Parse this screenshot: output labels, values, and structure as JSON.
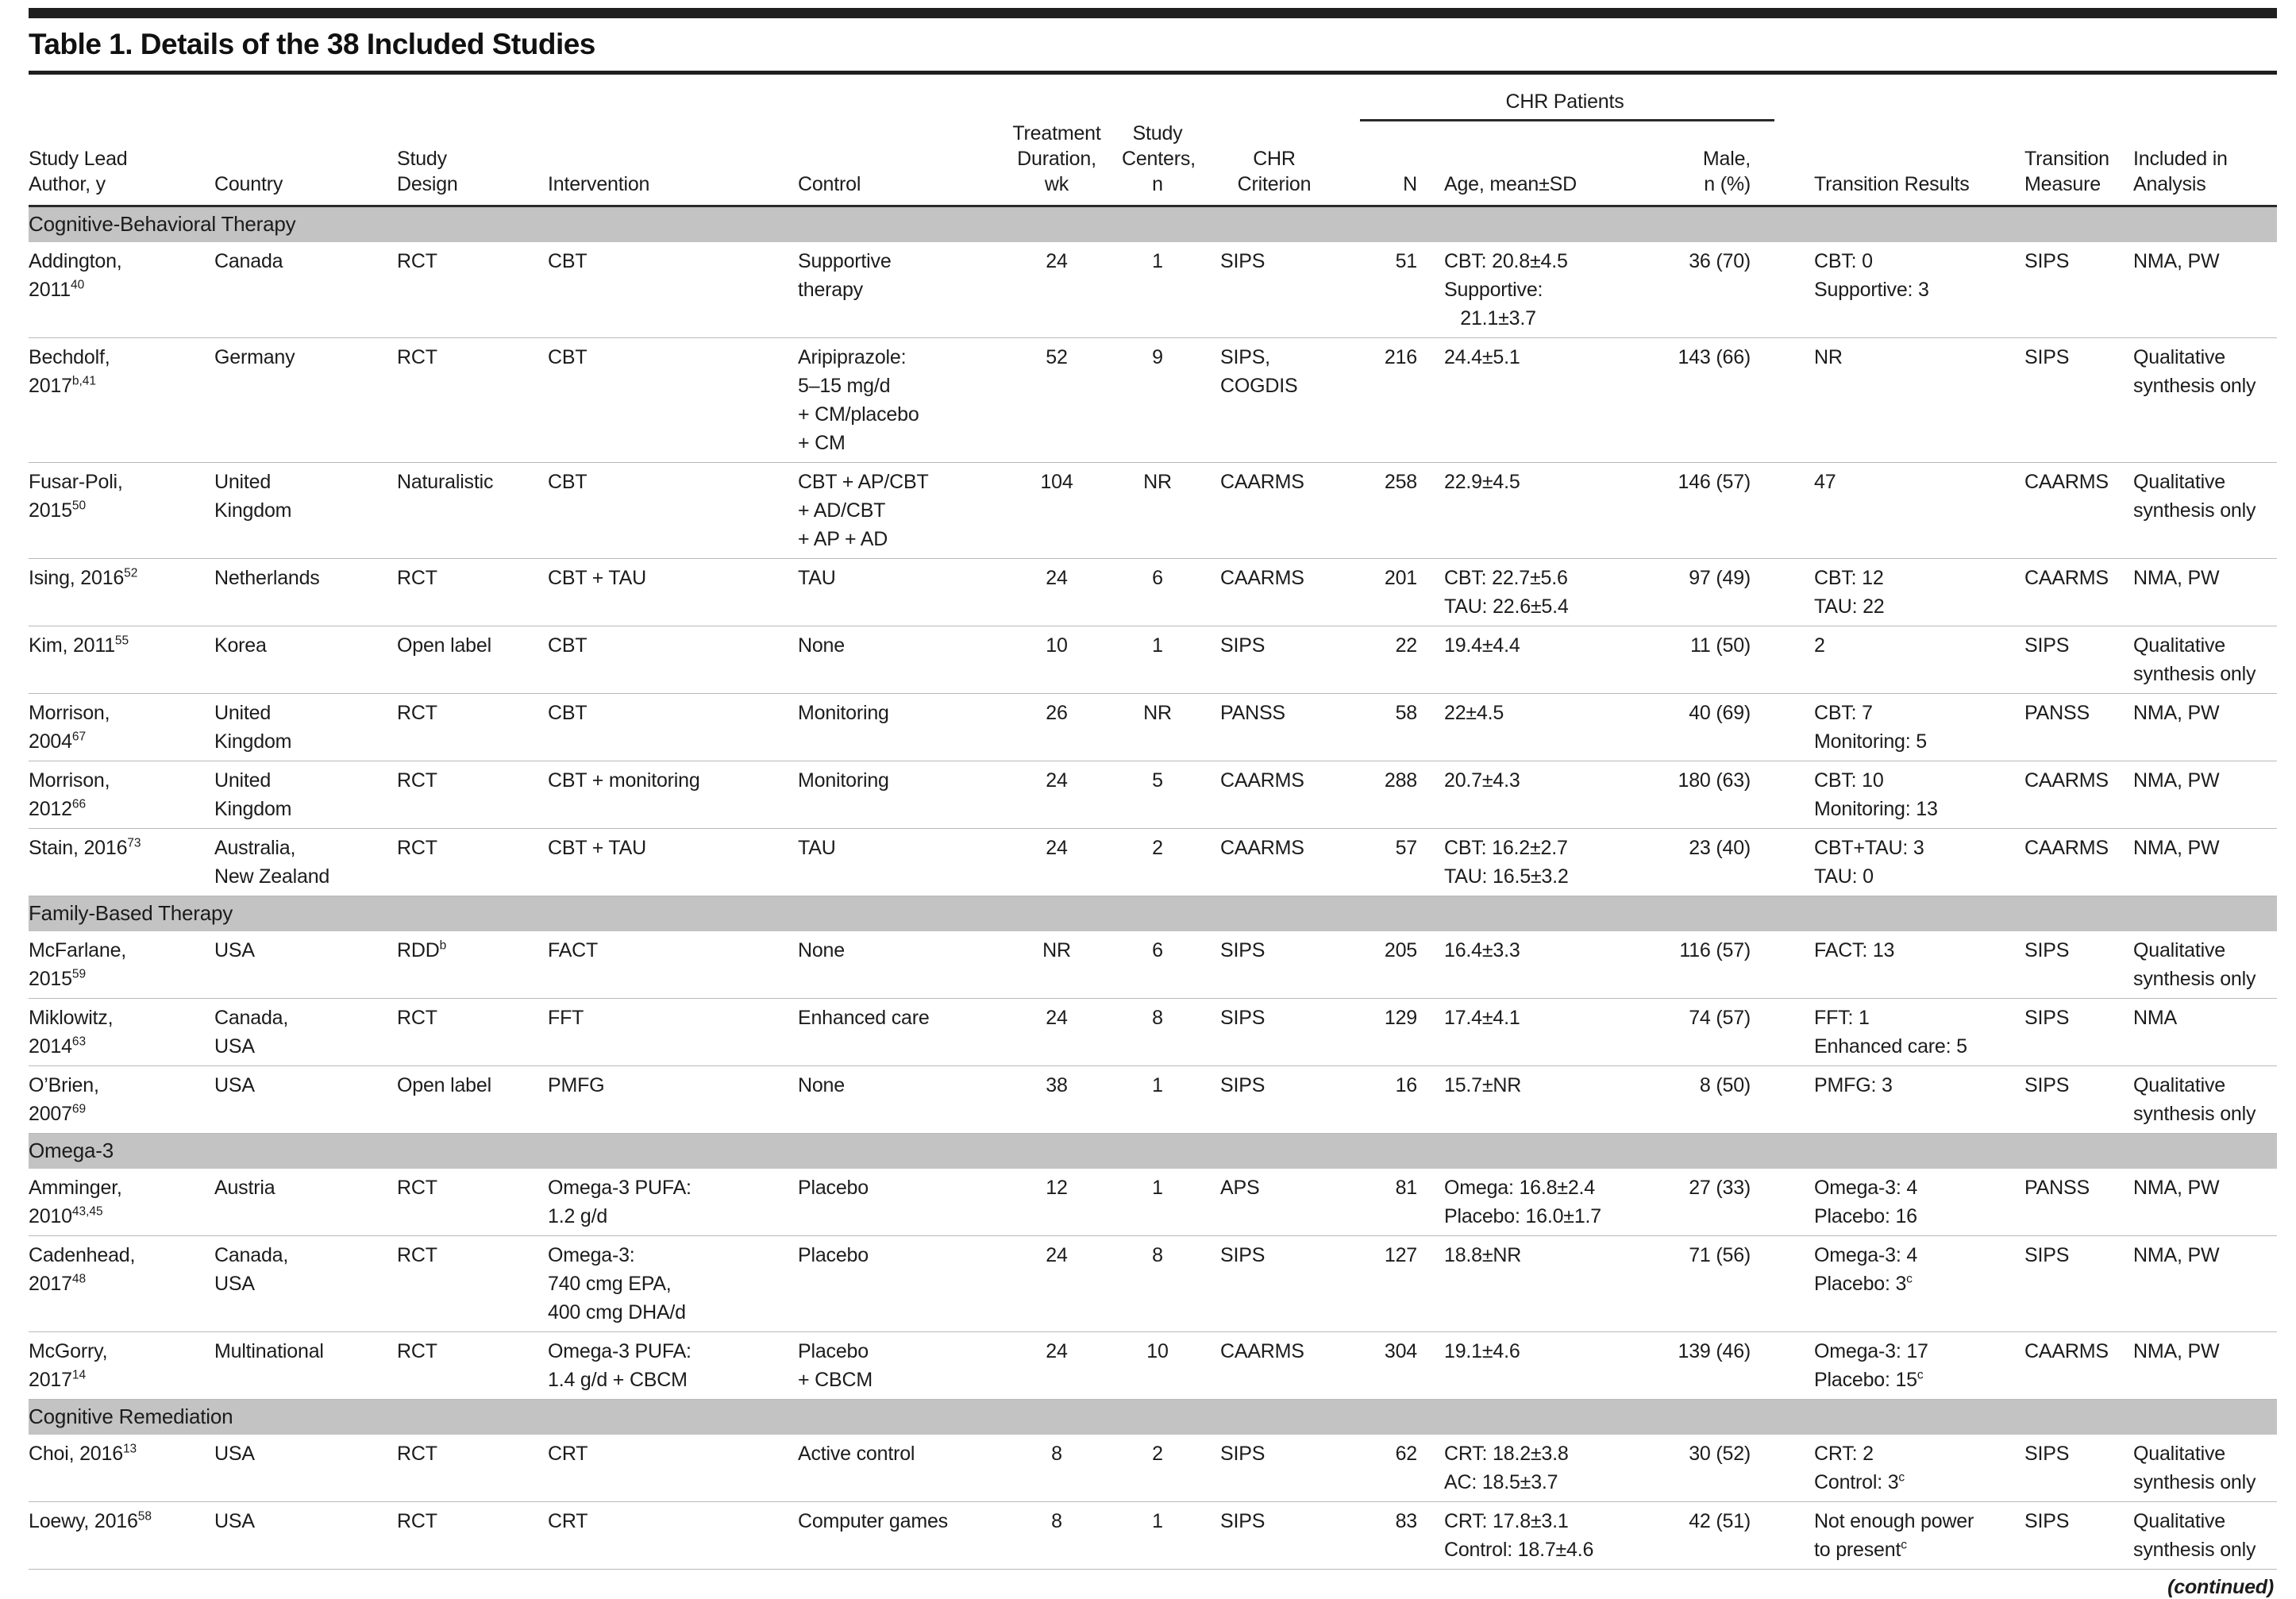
{
  "page": {
    "title": "Table 1. Details of the 38 Included Studies",
    "continued_note": "(continued)"
  },
  "style": {
    "section_bg": "#c3c3c3",
    "rule_dark": "#1f1f1f",
    "row_separator": "#b9b9b9",
    "text_color": "#1c1c1c"
  },
  "table": {
    "group_header": "CHR Patients",
    "columns": [
      "Study Lead\nAuthor, y",
      "Country",
      "Study\nDesign",
      "Intervention",
      "Control",
      "Treatment\nDuration,\nwk",
      "Study\nCenters,\nn",
      "CHR\nCriterion",
      "N",
      "Age, mean±SD",
      "Male,\nn (%)",
      "Transition Results",
      "Transition\nMeasure",
      "Included in\nAnalysis"
    ],
    "rows": [
      {
        "section": "Cognitive-Behavioral Therapy"
      },
      {
        "cells": [
          "Addington,\n2011^{40}",
          "Canada",
          "RCT",
          "CBT",
          "Supportive\ntherapy",
          "24",
          "1",
          "SIPS",
          "51",
          "CBT: 20.8±4.5\nSupportive:\n   21.1±3.7",
          "36 (70)",
          "CBT: 0\nSupportive: 3",
          "SIPS",
          "NMA, PW"
        ]
      },
      {
        "cells": [
          "Bechdolf,\n2017^{b,41}",
          "Germany",
          "RCT",
          "CBT",
          "Aripiprazole:\n5–15 mg/d\n+ CM/placebo\n+ CM",
          "52",
          "9",
          "SIPS,\nCOGDIS",
          "216",
          "24.4±5.1",
          "143 (66)",
          "NR",
          "SIPS",
          "Qualitative\nsynthesis only"
        ]
      },
      {
        "cells": [
          "Fusar-Poli,\n2015^{50}",
          "United\nKingdom",
          "Naturalistic",
          "CBT",
          "CBT + AP/CBT\n+ AD/CBT\n+ AP + AD",
          "104",
          "NR",
          "CAARMS",
          "258",
          "22.9±4.5",
          "146 (57)",
          "47",
          "CAARMS",
          "Qualitative\nsynthesis only"
        ]
      },
      {
        "cells": [
          "Ising, 2016^{52}",
          "Netherlands",
          "RCT",
          "CBT + TAU",
          "TAU",
          "24",
          "6",
          "CAARMS",
          "201",
          "CBT: 22.7±5.6\nTAU: 22.6±5.4",
          "97 (49)",
          "CBT: 12\nTAU: 22",
          "CAARMS",
          "NMA, PW"
        ]
      },
      {
        "cells": [
          "Kim, 2011^{55}",
          "Korea",
          "Open label",
          "CBT",
          "None",
          "10",
          "1",
          "SIPS",
          "22",
          "19.4±4.4",
          "11 (50)",
          "2",
          "SIPS",
          "Qualitative\nsynthesis only"
        ]
      },
      {
        "cells": [
          "Morrison,\n2004^{67}",
          "United\nKingdom",
          "RCT",
          "CBT",
          "Monitoring",
          "26",
          "NR",
          "PANSS",
          "58",
          "22±4.5",
          "40 (69)",
          "CBT: 7\nMonitoring: 5",
          "PANSS",
          "NMA, PW"
        ]
      },
      {
        "cells": [
          "Morrison,\n2012^{66}",
          "United\nKingdom",
          "RCT",
          "CBT + monitoring",
          "Monitoring",
          "24",
          "5",
          "CAARMS",
          "288",
          "20.7±4.3",
          "180 (63)",
          "CBT: 10\nMonitoring: 13",
          "CAARMS",
          "NMA, PW"
        ]
      },
      {
        "cells": [
          "Stain, 2016^{73}",
          "Australia,\nNew Zealand",
          "RCT",
          "CBT + TAU",
          "TAU",
          "24",
          "2",
          "CAARMS",
          "57",
          "CBT: 16.2±2.7\nTAU: 16.5±3.2",
          "23 (40)",
          "CBT+TAU: 3\nTAU: 0",
          "CAARMS",
          "NMA, PW"
        ]
      },
      {
        "section": "Family-Based Therapy"
      },
      {
        "cells": [
          "McFarlane,\n2015^{59}",
          "USA",
          "RDD^{b}",
          "FACT",
          "None",
          "NR",
          "6",
          "SIPS",
          "205",
          "16.4±3.3",
          "116 (57)",
          "FACT: 13",
          "SIPS",
          "Qualitative\nsynthesis only"
        ]
      },
      {
        "cells": [
          "Miklowitz,\n2014^{63}",
          "Canada,\nUSA",
          "RCT",
          "FFT",
          "Enhanced care",
          "24",
          "8",
          "SIPS",
          "129",
          "17.4±4.1",
          "74 (57)",
          "FFT: 1\nEnhanced care: 5",
          "SIPS",
          "NMA"
        ]
      },
      {
        "cells": [
          "O’Brien,\n2007^{69}",
          "USA",
          "Open label",
          "PMFG",
          "None",
          "38",
          "1",
          "SIPS",
          "16",
          "15.7±NR",
          "8 (50)",
          "PMFG: 3",
          "SIPS",
          "Qualitative\nsynthesis only"
        ]
      },
      {
        "section": "Omega-3"
      },
      {
        "cells": [
          "Amminger,\n2010^{43,45}",
          "Austria",
          "RCT",
          "Omega-3 PUFA:\n1.2 g/d",
          "Placebo",
          "12",
          "1",
          "APS",
          "81",
          "Omega: 16.8±2.4\nPlacebo: 16.0±1.7",
          "27 (33)",
          "Omega-3: 4\nPlacebo: 16",
          "PANSS",
          "NMA, PW"
        ]
      },
      {
        "cells": [
          "Cadenhead,\n2017^{48}",
          "Canada,\nUSA",
          "RCT",
          "Omega-3:\n740 cmg EPA,\n400 cmg DHA/d",
          "Placebo",
          "24",
          "8",
          "SIPS",
          "127",
          "18.8±NR",
          "71 (56)",
          "Omega-3: 4\nPlacebo: 3^{c}",
          "SIPS",
          "NMA, PW"
        ]
      },
      {
        "cells": [
          "McGorry,\n2017^{14}",
          "Multinational",
          "RCT",
          "Omega-3 PUFA:\n1.4 g/d + CBCM",
          "Placebo\n+ CBCM",
          "24",
          "10",
          "CAARMS",
          "304",
          "19.1±4.6",
          "139 (46)",
          "Omega-3: 17\nPlacebo: 15^{c}",
          "CAARMS",
          "NMA, PW"
        ]
      },
      {
        "section": "Cognitive Remediation"
      },
      {
        "cells": [
          "Choi, 2016^{13}",
          "USA",
          "RCT",
          "CRT",
          "Active control",
          "8",
          "2",
          "SIPS",
          "62",
          "CRT: 18.2±3.8\nAC: 18.5±3.7",
          "30 (52)",
          "CRT: 2\nControl: 3^{c}",
          "SIPS",
          "Qualitative\nsynthesis only"
        ]
      },
      {
        "cells": [
          "Loewy, 2016^{58}",
          "USA",
          "RCT",
          "CRT",
          "Computer games",
          "8",
          "1",
          "SIPS",
          "83",
          "CRT: 17.8±3.1\nControl: 18.7±4.6",
          "42 (51)",
          "Not enough power\nto present^{c}",
          "SIPS",
          "Qualitative\nsynthesis only"
        ]
      }
    ]
  }
}
